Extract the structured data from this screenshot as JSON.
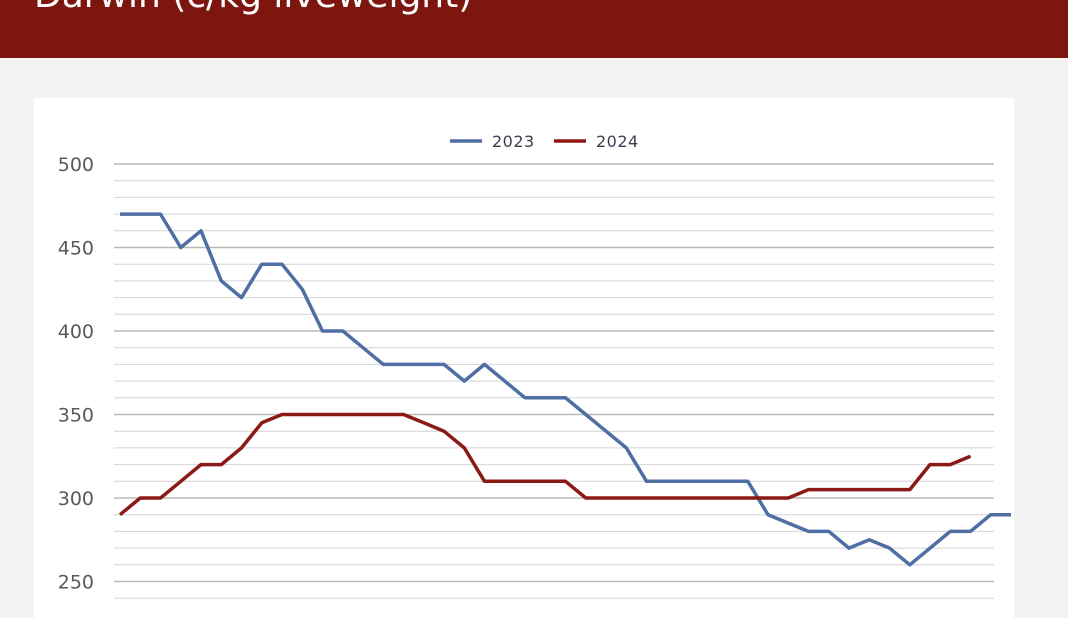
{
  "header": {
    "title": "Darwin (c/kg liveweight)"
  },
  "colors": {
    "header_bg": "#7e1610",
    "series_2023": "#4f6fa4",
    "series_2024": "#8b1a17"
  },
  "chart_data": {
    "type": "line",
    "ylim": [
      250,
      500
    ],
    "yticks": [
      250,
      300,
      350,
      400,
      450,
      500
    ],
    "grid": true,
    "legend": "top-center",
    "series": [
      {
        "name": "2023",
        "color": "#4f6fa4",
        "values": [
          470,
          470,
          470,
          450,
          460,
          430,
          420,
          440,
          440,
          425,
          400,
          400,
          390,
          380,
          380,
          380,
          380,
          370,
          380,
          370,
          360,
          360,
          360,
          350,
          340,
          330,
          310,
          310,
          310,
          310,
          310,
          310,
          290,
          285,
          280,
          280,
          270,
          275,
          270,
          260,
          270,
          280,
          280,
          290,
          290
        ]
      },
      {
        "name": "2024",
        "color": "#8b1a17",
        "values": [
          290,
          300,
          300,
          310,
          320,
          320,
          330,
          345,
          350,
          350,
          350,
          350,
          350,
          350,
          350,
          345,
          340,
          330,
          310,
          310,
          310,
          310,
          310,
          300,
          300,
          300,
          300,
          300,
          300,
          300,
          300,
          300,
          300,
          300,
          305,
          305,
          305,
          305,
          305,
          305,
          320,
          320,
          325
        ]
      }
    ]
  }
}
